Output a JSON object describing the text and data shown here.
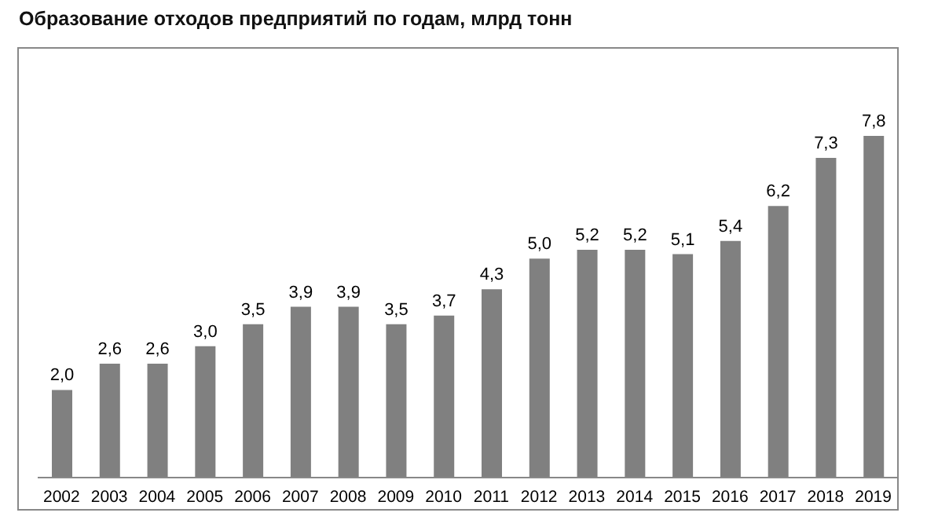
{
  "chart_data": {
    "type": "bar",
    "title": "Образование отходов предприятий по годам, млрд тонн",
    "categories": [
      "2002",
      "2003",
      "2004",
      "2005",
      "2006",
      "2007",
      "2008",
      "2009",
      "2010",
      "2011",
      "2012",
      "2013",
      "2014",
      "2015",
      "2016",
      "2017",
      "2018",
      "2019"
    ],
    "values": [
      2.0,
      2.6,
      2.6,
      3.0,
      3.5,
      3.9,
      3.9,
      3.5,
      3.7,
      4.3,
      5.0,
      5.2,
      5.2,
      5.1,
      5.4,
      6.2,
      7.3,
      7.8
    ],
    "value_labels": [
      "2,0",
      "2,6",
      "2,6",
      "3,0",
      "3,5",
      "3,9",
      "3,9",
      "3,5",
      "3,7",
      "4,3",
      "5,0",
      "5,2",
      "5,2",
      "5,1",
      "5,4",
      "6,2",
      "7,3",
      "7,8"
    ],
    "color": "#808080",
    "grid": false,
    "legend": false
  }
}
